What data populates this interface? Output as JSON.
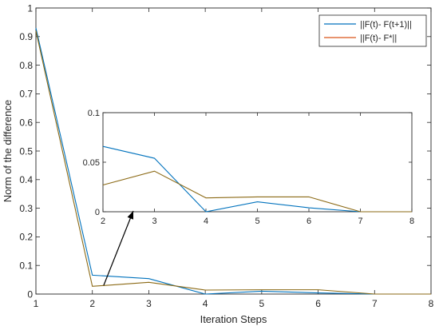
{
  "chart_data": [
    {
      "type": "line",
      "xlabel": "Iteration Steps",
      "ylabel": "Norm of the difference",
      "xlim": [
        1,
        8
      ],
      "ylim": [
        0,
        1
      ],
      "xticks": [
        1,
        2,
        3,
        4,
        5,
        6,
        7,
        8
      ],
      "yticks": [
        0,
        0.1,
        0.2,
        0.3,
        0.4,
        0.5,
        0.6,
        0.7,
        0.8,
        0.9,
        1
      ],
      "ytick_labels": [
        "0",
        "0.1",
        "0.2",
        "0.3",
        "0.4",
        "0.5",
        "0.6",
        "0.7",
        "0.8",
        "0.9",
        "1"
      ],
      "legend_position": "top-right",
      "series": [
        {
          "name": "||F(t)- F(t+1)||",
          "color": "#0072BD",
          "x": [
            1,
            2,
            3,
            4,
            5,
            6,
            7,
            8
          ],
          "y": [
            0.93,
            0.066,
            0.054,
            0.0,
            0.01,
            0.004,
            0.0,
            0.0
          ]
        },
        {
          "name": "||F(t)- F*||",
          "color": "#D95319",
          "x": [
            1,
            2,
            3,
            4,
            5,
            6,
            7,
            8
          ],
          "y": [
            0.92,
            0.027,
            0.041,
            0.014,
            0.015,
            0.015,
            0.0,
            0.0
          ]
        }
      ]
    },
    {
      "type": "line",
      "role": "inset",
      "xlim": [
        2,
        8
      ],
      "ylim": [
        0,
        0.1
      ],
      "xticks": [
        2,
        3,
        4,
        5,
        6,
        7,
        8
      ],
      "yticks": [
        0,
        0.05,
        0.1
      ],
      "ytick_labels": [
        "0",
        "0.05",
        "0.1"
      ],
      "series": [
        {
          "color": "#0072BD",
          "x": [
            2,
            3,
            4,
            5,
            6,
            7,
            8
          ],
          "y": [
            0.066,
            0.054,
            0.0,
            0.01,
            0.004,
            0.0,
            0.0
          ]
        },
        {
          "color": "#D95319",
          "x": [
            2,
            3,
            4,
            5,
            6,
            7,
            8
          ],
          "y": [
            0.027,
            0.041,
            0.014,
            0.015,
            0.015,
            0.0,
            0.0
          ]
        }
      ]
    }
  ],
  "colors": {
    "axis": "#262626",
    "overlap_line": "#8B6914",
    "arrow": "#000000"
  }
}
